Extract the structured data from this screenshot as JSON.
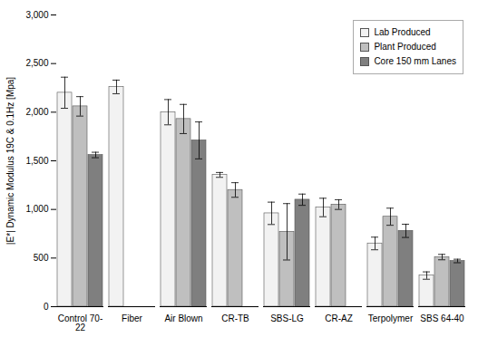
{
  "chart_data": {
    "type": "bar",
    "categories": [
      "Control 70-\n22",
      "Fiber",
      "Air Blown",
      "CR-TB",
      "SBS-LG",
      "CR-AZ",
      "Terpolymer",
      "SBS 64-40"
    ],
    "series": [
      {
        "name": "Lab Produced",
        "color": "#f2f2f2",
        "values": [
          2200,
          2260,
          2000,
          1355,
          960,
          1020,
          650,
          320
        ],
        "errors": [
          160,
          70,
          130,
          25,
          115,
          95,
          65,
          38
        ]
      },
      {
        "name": "Plant Produced",
        "color": "#bfbfbf",
        "values": [
          2060,
          null,
          1930,
          1200,
          770,
          1050,
          925,
          510
        ],
        "errors": [
          100,
          null,
          150,
          75,
          290,
          50,
          88,
          28
        ]
      },
      {
        "name": "Core 150 mm Lanes",
        "color": "#7f7f7f",
        "values": [
          1560,
          null,
          1710,
          null,
          1100,
          null,
          780,
          470
        ],
        "errors": [
          28,
          null,
          190,
          null,
          58,
          null,
          68,
          18
        ]
      }
    ],
    "ylabel": "|E*| Dynamic Modulus 19C & 0.1Hz [Mpa]",
    "ylim": [
      0,
      3000
    ],
    "yticks": [
      0,
      500,
      1000,
      1500,
      2000,
      2500,
      3000
    ],
    "legend": "upper right",
    "grid": false
  }
}
